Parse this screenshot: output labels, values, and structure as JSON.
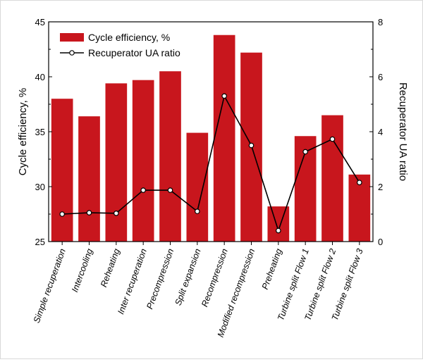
{
  "chart_data": {
    "type": "bar",
    "categories": [
      "Simple  recuperation",
      "Intercooling",
      "Reheating",
      "Inter recuperation",
      "Precompression",
      "Split expansion",
      "Recompression",
      "Modified recompression",
      "Preheating",
      "Turbine split Flow 1",
      "Turbine split Flow 2",
      "Turbine split Flow 3"
    ],
    "series": [
      {
        "name": "Cycle efficiency, %",
        "type": "bar",
        "axis": "left",
        "color": "#c8161d",
        "values": [
          38.0,
          36.4,
          39.4,
          39.7,
          40.5,
          34.9,
          43.8,
          42.2,
          28.2,
          34.6,
          36.5,
          31.1
        ]
      },
      {
        "name": "Recuperator UA ratio",
        "type": "line",
        "axis": "right",
        "color": "#000000",
        "values": [
          1.0,
          1.05,
          1.03,
          1.87,
          1.87,
          1.1,
          5.3,
          3.5,
          0.4,
          3.27,
          3.73,
          2.15
        ]
      }
    ],
    "ylabel": "Cycle efficiency, %",
    "ylabel_right": "Recuperator UA ratio",
    "ylim": [
      25,
      45
    ],
    "ylim_right": [
      0,
      8
    ],
    "yticks": [
      "25",
      "30",
      "35",
      "40",
      "45"
    ],
    "yticks_right": [
      "0",
      "2",
      "4",
      "6",
      "8"
    ],
    "grid": false,
    "legend_position": "top-left"
  }
}
